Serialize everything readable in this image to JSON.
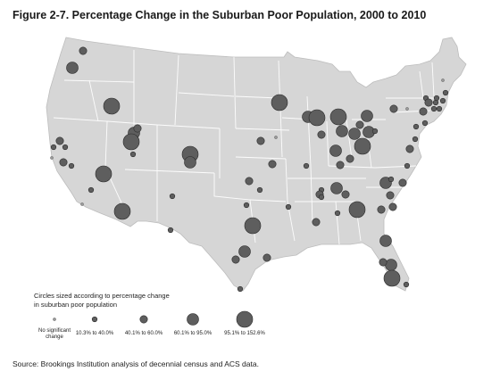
{
  "title": "Figure 2-7. Percentage Change in the Suburban Poor Population, 2000 to 2010",
  "legend": {
    "title_line1": "Circles sized according to percentage change",
    "title_line2": "in suburban poor population",
    "categories": [
      {
        "label_line1": "No significant",
        "label_line2": "change",
        "size_class": 0
      },
      {
        "label_line1": "10.3% to 40.0%",
        "label_line2": "",
        "size_class": 1
      },
      {
        "label_line1": "40.1% to 60.0%",
        "label_line2": "",
        "size_class": 2
      },
      {
        "label_line1": "60.1% to 95.0%",
        "label_line2": "",
        "size_class": 3
      },
      {
        "label_line1": "95.1% to 152.6%",
        "label_line2": "",
        "size_class": 4
      }
    ]
  },
  "source": "Source: Brookings Institution analysis of decennial census and ACS data.",
  "colors": {
    "land": "#d6d6d6",
    "state_border": "#ffffff",
    "circle_fill": "#5e5e5e",
    "circle_stroke": "#2b2b2b",
    "small_fill": "#9a9a9a"
  }
}
